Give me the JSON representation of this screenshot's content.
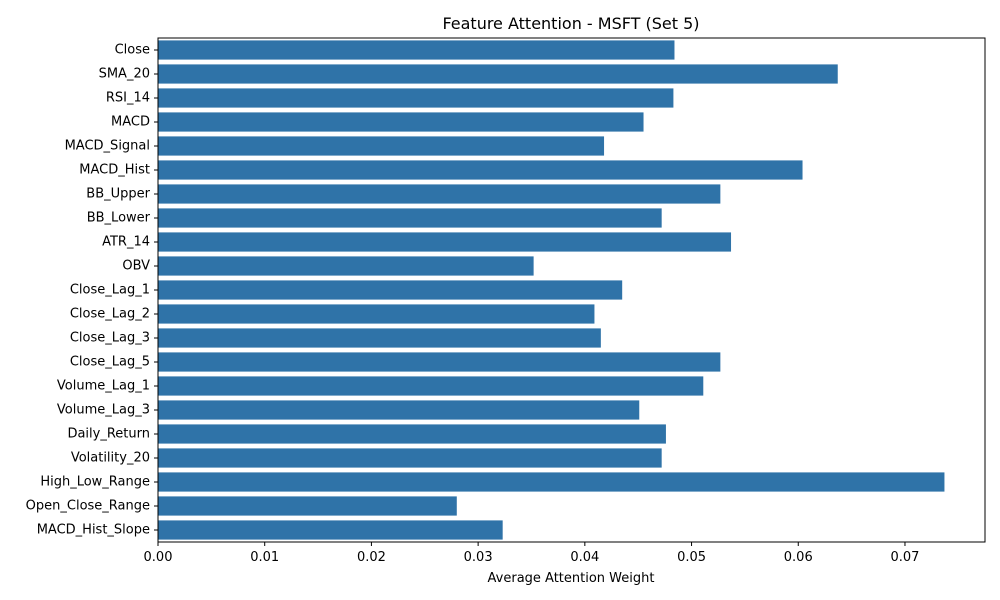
{
  "chart_data": {
    "type": "bar",
    "orientation": "horizontal",
    "title": "Feature Attention - MSFT (Set 5)",
    "xlabel": "Average Attention Weight",
    "ylabel": "",
    "xlim": [
      0,
      0.0775
    ],
    "xticks": [
      0.0,
      0.01,
      0.02,
      0.03,
      0.04,
      0.05,
      0.06,
      0.07
    ],
    "xtick_labels": [
      "0.00",
      "0.01",
      "0.02",
      "0.03",
      "0.04",
      "0.05",
      "0.06",
      "0.07"
    ],
    "grid": false,
    "bar_color": "#2f73a8",
    "categories": [
      "Close",
      "SMA_20",
      "RSI_14",
      "MACD",
      "MACD_Signal",
      "MACD_Hist",
      "BB_Upper",
      "BB_Lower",
      "ATR_14",
      "OBV",
      "Close_Lag_1",
      "Close_Lag_2",
      "Close_Lag_3",
      "Close_Lag_5",
      "Volume_Lag_1",
      "Volume_Lag_3",
      "Daily_Return",
      "Volatility_20",
      "High_Low_Range",
      "Open_Close_Range",
      "MACD_Hist_Slope"
    ],
    "values": [
      0.0484,
      0.0637,
      0.0483,
      0.0455,
      0.0418,
      0.0604,
      0.0527,
      0.0472,
      0.0537,
      0.0352,
      0.0435,
      0.0409,
      0.0415,
      0.0527,
      0.0511,
      0.0451,
      0.0476,
      0.0472,
      0.0737,
      0.028,
      0.0323
    ]
  }
}
